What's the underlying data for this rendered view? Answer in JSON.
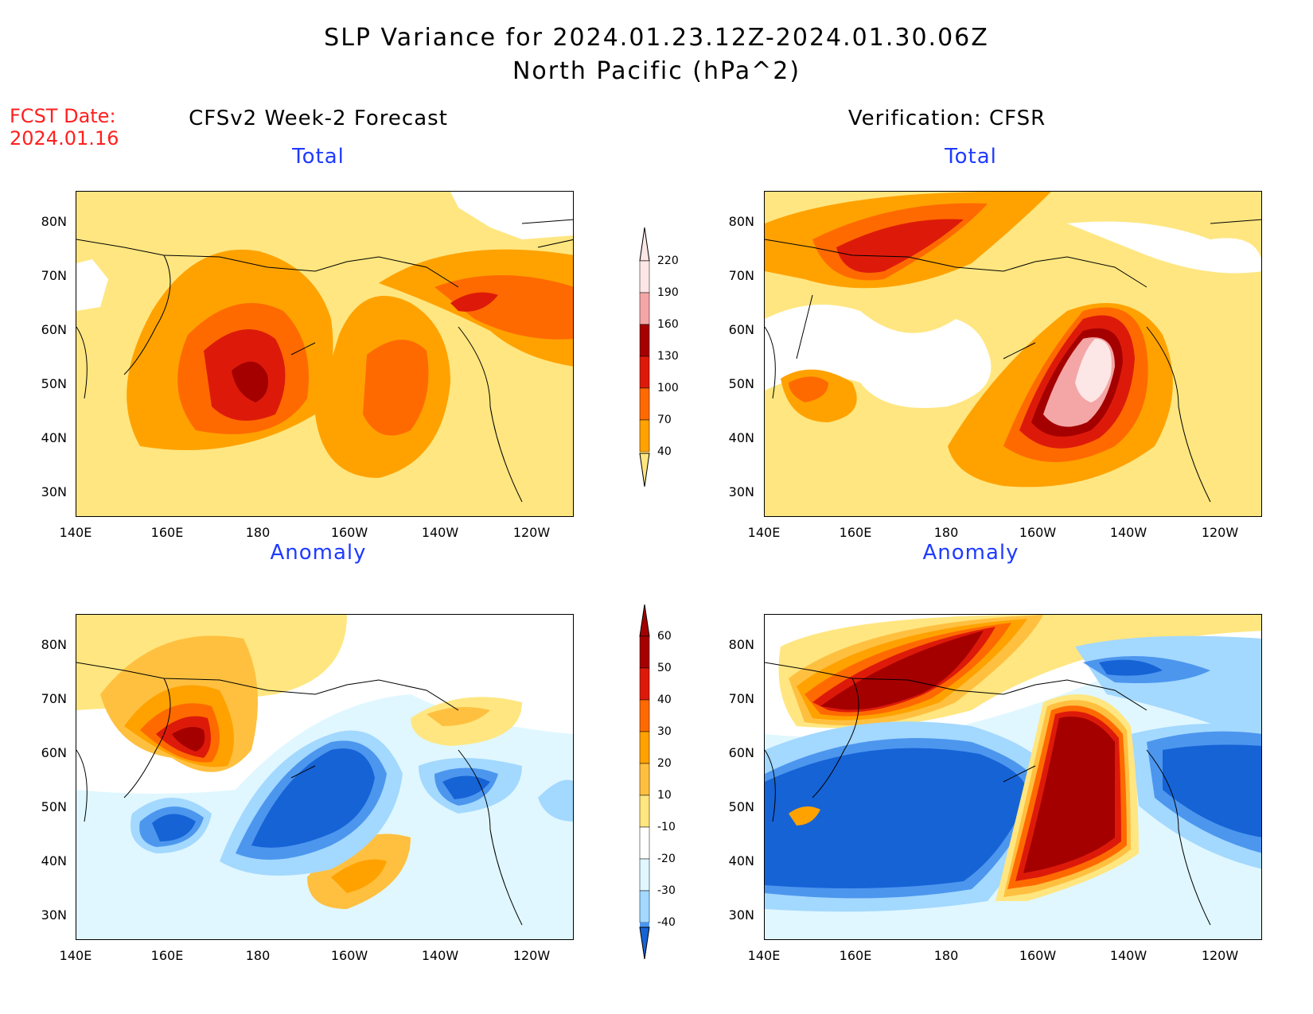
{
  "header": {
    "title_line1": "SLP Variance for 2024.01.23.12Z-2024.01.30.06Z",
    "title_line2": "North Pacific (hPa^2)"
  },
  "fcst": {
    "line1": "FCST Date:",
    "line2": "2024.01.16"
  },
  "columns": {
    "left": "CFSv2 Week-2 Forecast",
    "right": "Verification: CFSR"
  },
  "panels": {
    "total_label": "Total",
    "anomaly_label": "Anomaly"
  },
  "axes": {
    "lat_labels": [
      "80N",
      "70N",
      "60N",
      "50N",
      "40N",
      "30N"
    ],
    "lon_labels": [
      "140E",
      "160E",
      "180",
      "160W",
      "140W",
      "120W"
    ]
  },
  "colorbar_total": {
    "labels": [
      "220",
      "190",
      "160",
      "130",
      "100",
      "70",
      "40"
    ],
    "colors": [
      "#fde6e6",
      "#f4a6a6",
      "#a50000",
      "#dd1a0a",
      "#ff6a00",
      "#ffa200",
      "#ffe680"
    ]
  },
  "colorbar_anomaly": {
    "labels": [
      "60",
      "50",
      "40",
      "30",
      "20",
      "10",
      "-10",
      "-20",
      "-30",
      "-40"
    ],
    "colors": [
      "#a50000",
      "#dd1a0a",
      "#ff6a00",
      "#ffa200",
      "#ffc040",
      "#ffe680",
      "#ffffff",
      "#e0f7ff",
      "#a3d8ff",
      "#4c96ee",
      "#1663d6"
    ]
  },
  "colors": {
    "title": "#000000",
    "subtitle": "#1f3bff",
    "fcst": "#ff2020"
  }
}
